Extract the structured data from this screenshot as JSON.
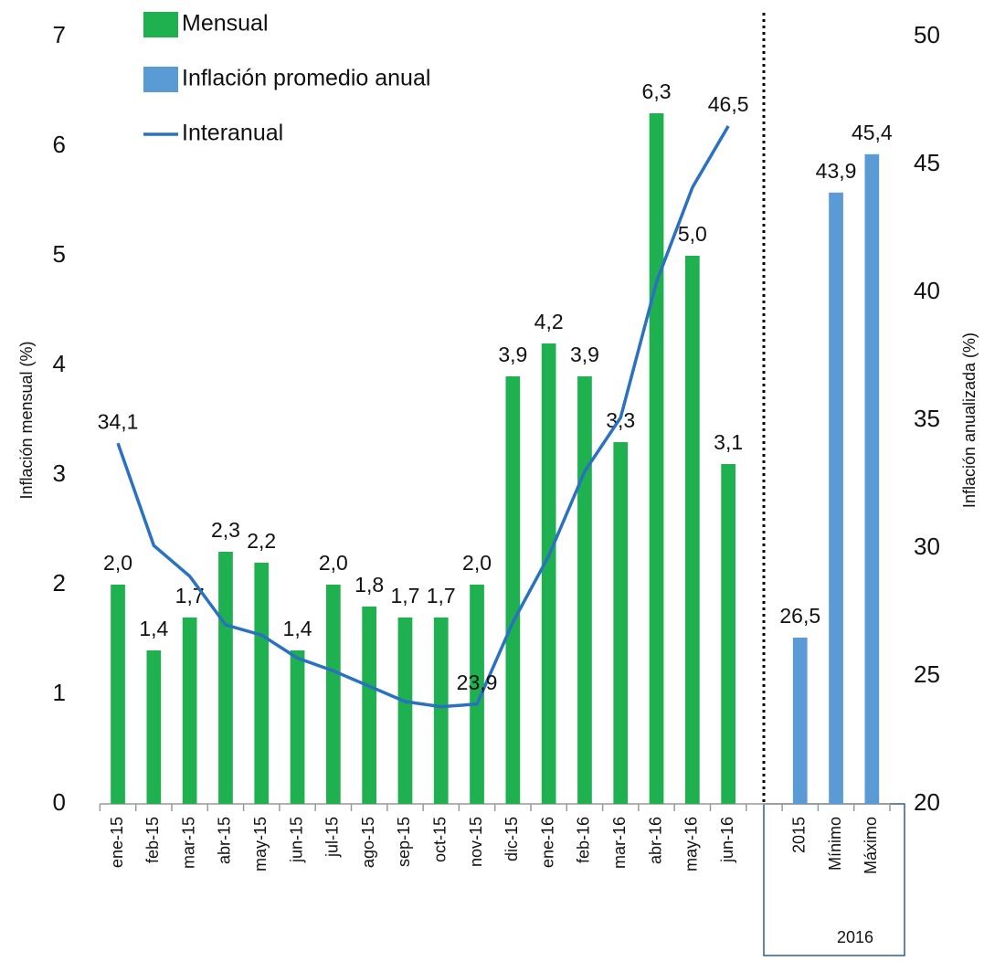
{
  "chart_data": {
    "type": "combo",
    "y_label": "Inflación mensual (%)",
    "y2_label": "Inflación anualizada (%)",
    "categories": [
      "ene-15",
      "feb-15",
      "mar-15",
      "abr-15",
      "may-15",
      "jun-15",
      "jul-15",
      "ago-15",
      "sep-15",
      "oct-15",
      "nov-15",
      "dic-15",
      "ene-16",
      "feb-16",
      "mar-16",
      "abr-16",
      "may-16",
      "jun-16",
      null,
      "2015",
      "Mínimo",
      "Máximo"
    ],
    "x_group_label": "2016",
    "ylim": [
      0,
      7
    ],
    "yticks": [
      0,
      1,
      2,
      3,
      4,
      5,
      6,
      7
    ],
    "y2lim": [
      20,
      50
    ],
    "y2ticks": [
      20,
      25,
      30,
      35,
      40,
      45,
      50
    ],
    "grid": false,
    "legend": "top-left",
    "series": [
      {
        "name": "Mensual",
        "type": "bar",
        "color": "#1fb04f",
        "axis": "y",
        "values": [
          2.0,
          1.4,
          1.7,
          2.3,
          2.2,
          1.4,
          2.0,
          1.8,
          1.7,
          1.7,
          2.0,
          3.9,
          4.2,
          3.9,
          3.3,
          6.3,
          5.0,
          3.1,
          null,
          null,
          null,
          null
        ],
        "value_labels": [
          "2,0",
          "1,4",
          "1,7",
          "2,3",
          "2,2",
          "1,4",
          "2,0",
          "1,8",
          "1,7",
          "1,7",
          "2,0",
          "3,9",
          "4,2",
          "3,9",
          "3,3",
          "6,3",
          "5,0",
          "3,1",
          null,
          null,
          null,
          null
        ]
      },
      {
        "name": "Inflación promedio anual",
        "type": "bar",
        "color": "#5b9bd5",
        "axis": "y2",
        "values": [
          null,
          null,
          null,
          null,
          null,
          null,
          null,
          null,
          null,
          null,
          null,
          null,
          null,
          null,
          null,
          null,
          null,
          null,
          null,
          26.5,
          43.9,
          45.4
        ],
        "value_labels": [
          null,
          null,
          null,
          null,
          null,
          null,
          null,
          null,
          null,
          null,
          null,
          null,
          null,
          null,
          null,
          null,
          null,
          null,
          null,
          "26,5",
          "43,9",
          "45,4"
        ]
      },
      {
        "name": "Interanual",
        "type": "line",
        "color": "#2a72c0",
        "axis": "y2",
        "values": [
          34.1,
          30.1,
          28.9,
          27.0,
          26.6,
          25.7,
          25.2,
          24.6,
          24.0,
          23.8,
          23.9,
          27.1,
          29.7,
          33.0,
          35.1,
          40.4,
          44.1,
          46.5,
          null,
          null,
          null,
          null
        ],
        "value_labels": [
          "34,1",
          null,
          null,
          null,
          null,
          null,
          null,
          null,
          null,
          null,
          "23,9",
          null,
          null,
          null,
          null,
          null,
          null,
          "46,5",
          null,
          null,
          null,
          null
        ]
      }
    ]
  }
}
